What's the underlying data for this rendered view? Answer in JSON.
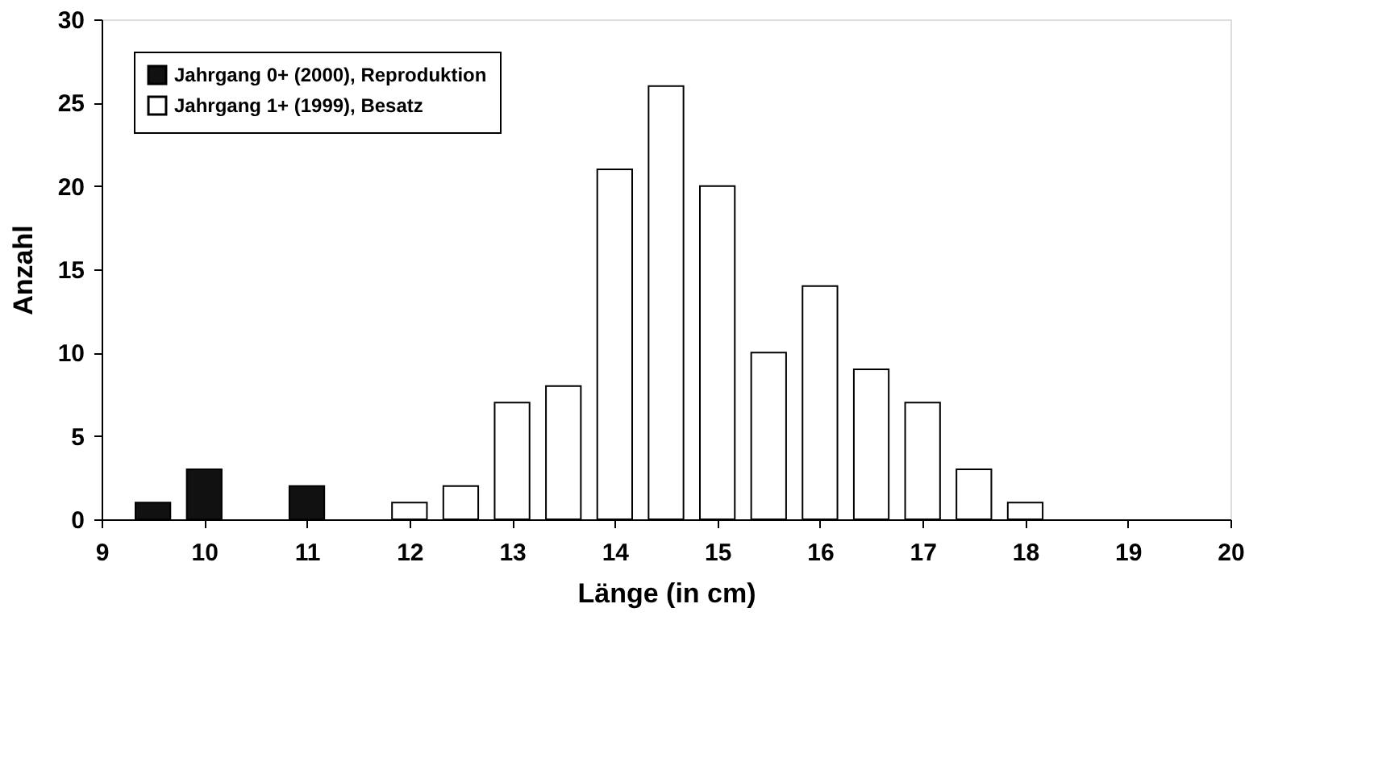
{
  "chart_data": {
    "type": "bar",
    "xlabel": "Länge (in cm)",
    "ylabel": "Anzahl",
    "series": [
      {
        "name": "Jahrgang 0+ (2000), Reproduktion",
        "color": "#111111",
        "x": [
          9.5,
          10,
          11
        ],
        "values": [
          1,
          3,
          2
        ]
      },
      {
        "name": "Jahrgang 1+ (1999), Besatz",
        "color": "#ffffff",
        "x": [
          12,
          12.5,
          13,
          13.5,
          14,
          14.5,
          15,
          15.5,
          16,
          16.5,
          17,
          17.5,
          18
        ],
        "values": [
          1,
          2,
          7,
          8,
          21,
          26,
          20,
          10,
          14,
          9,
          7,
          3,
          1
        ]
      }
    ],
    "xlim": [
      9,
      20
    ],
    "xticks": [
      9,
      10,
      11,
      12,
      13,
      14,
      15,
      16,
      17,
      18,
      19,
      20
    ],
    "ylim": [
      0,
      30
    ],
    "yticks": [
      0,
      5,
      10,
      15,
      20,
      25,
      30
    ],
    "grid": false,
    "legend": "top left"
  }
}
